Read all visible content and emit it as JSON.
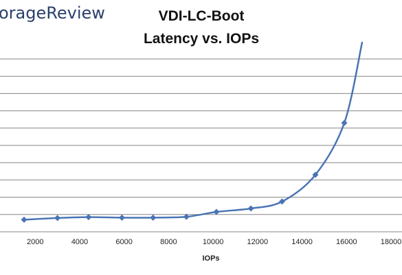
{
  "brand": {
    "text": "orageReview"
  },
  "colors": {
    "series": "#4a74b4",
    "grid": "#858585",
    "brand": "#2a3f6b"
  },
  "chart_data": {
    "type": "scatter",
    "title": "VDI-LC-Boot",
    "subtitle": "Latency vs. IOPs",
    "xlabel": "IOPs",
    "ylabel": "",
    "xlim": [
      0,
      18000
    ],
    "ylim": [
      0,
      11
    ],
    "x_ticks": [
      "2000",
      "4000",
      "6000",
      "8000",
      "10000",
      "12000",
      "14000",
      "16000",
      "18000"
    ],
    "grid": "horizontal",
    "legend": "none",
    "marker": "diamond",
    "line": "smooth",
    "series": [
      {
        "x": [
          1500,
          3000,
          4400,
          5900,
          7300,
          8800,
          10150,
          11700,
          13100,
          14600,
          15900
        ],
        "y": [
          0.7,
          0.8,
          0.85,
          0.82,
          0.82,
          0.87,
          1.15,
          1.35,
          1.75,
          3.3,
          6.3
        ]
      }
    ],
    "line_end": {
      "x": 16700,
      "y": 10.95
    }
  }
}
